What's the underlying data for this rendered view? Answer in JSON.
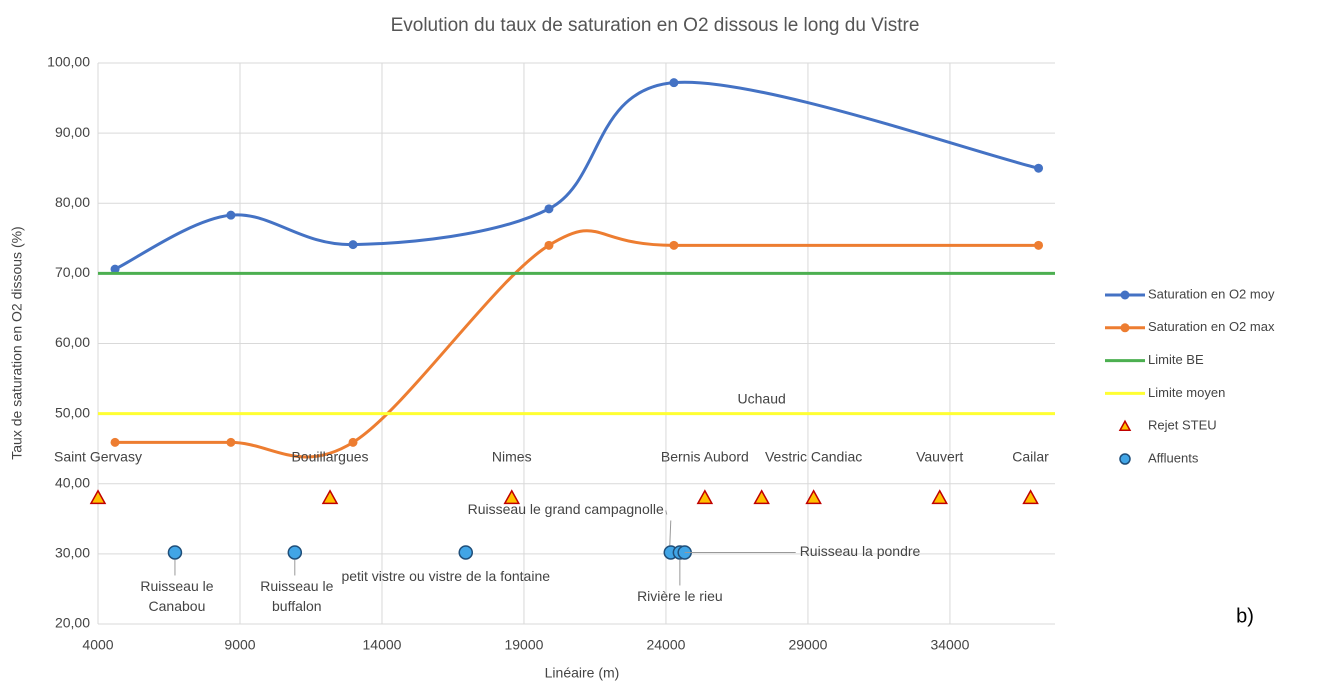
{
  "chart_data": {
    "type": "scatter",
    "title": "Evolution du taux de saturation en O2 dissous le long du Vistre",
    "xlabel": "Linéaire (m)",
    "ylabel": "Taux de saturation en O2 dissous (%)",
    "panel_label": "b)",
    "xlim": [
      4000,
      37700
    ],
    "ylim": [
      20,
      100
    ],
    "xticks": [
      4000,
      9000,
      14000,
      19000,
      24000,
      29000,
      34000
    ],
    "yticks": [
      {
        "value": 20,
        "label": "20,00"
      },
      {
        "value": 30,
        "label": "30,00"
      },
      {
        "value": 40,
        "label": "40,00"
      },
      {
        "value": 50,
        "label": "50,00"
      },
      {
        "value": 60,
        "label": "60,00"
      },
      {
        "value": 70,
        "label": "70,00"
      },
      {
        "value": 80,
        "label": "80,00"
      },
      {
        "value": 90,
        "label": "90,00"
      },
      {
        "value": 100,
        "label": "100,00"
      }
    ],
    "grid": true,
    "legend": "right",
    "series": [
      {
        "name": "Saturation en O2 moy",
        "kind": "line",
        "color": "#4472c4",
        "x": [
          4600,
          8680,
          12980,
          19880,
          24280,
          37120
        ],
        "values": [
          70.6,
          78.3,
          74.1,
          79.2,
          97.2,
          85.0
        ]
      },
      {
        "name": "Saturation en O2 max",
        "kind": "line",
        "color": "#ed7d31",
        "x": [
          4600,
          8680,
          12980,
          19880,
          24280,
          37120
        ],
        "values": [
          45.9,
          45.9,
          45.9,
          74.0,
          74.0,
          74.0
        ]
      },
      {
        "name": "Limite BE",
        "kind": "hline",
        "color": "#4caf50",
        "value": 70
      },
      {
        "name": "Limite moyen",
        "kind": "hline",
        "color": "#ffff33",
        "value": 50
      },
      {
        "name": "Rejet STEU",
        "kind": "triangle",
        "color": "#c00000",
        "fill": "#ffc000",
        "x": [
          4000,
          12170,
          18570,
          25370,
          27370,
          29200,
          33640,
          36840
        ],
        "values": [
          38,
          38,
          38,
          38,
          38,
          38,
          38,
          38
        ],
        "labels": [
          [
            "Saint Gervasy"
          ],
          [
            "Bouillargues"
          ],
          [
            "Nimes"
          ],
          [
            "Bernis Aubord"
          ],
          [
            "Uchaud"
          ],
          [
            "Vestric Candiac"
          ],
          [
            "Vauvert"
          ],
          [
            "Cailar"
          ]
        ]
      },
      {
        "name": "Affluents",
        "kind": "circle",
        "color": "#1f4e79",
        "fill": "#41a5e6",
        "x": [
          6710,
          10930,
          16950,
          24170,
          24490,
          24660
        ],
        "values": [
          30.2,
          30.2,
          30.2,
          30.2,
          30.2,
          30.2
        ],
        "labels": [
          [
            "Ruisseau le",
            "Canabou"
          ],
          [
            "Ruisseau le",
            "buffalon"
          ],
          [
            "petit vistre ou vistre de la fontaine"
          ],
          [
            "Ruisseau le grand campagnolle"
          ],
          [
            "Rivière le rieu"
          ],
          [
            "Ruisseau la pondre"
          ]
        ]
      }
    ]
  }
}
